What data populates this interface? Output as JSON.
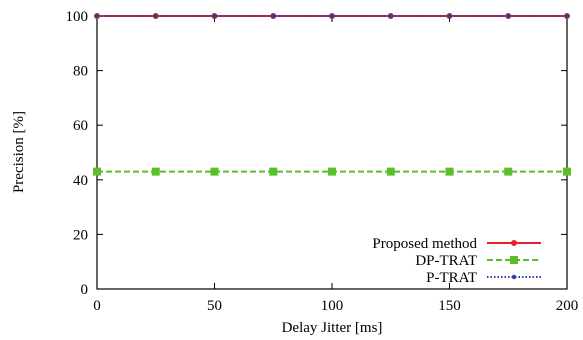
{
  "chart_data": {
    "type": "line",
    "title": "",
    "xlabel": "Delay Jitter [ms]",
    "ylabel": "Precision [%]",
    "xlim": [
      0,
      200
    ],
    "ylim": [
      0,
      100
    ],
    "xticks": [
      0,
      50,
      100,
      150,
      200
    ],
    "yticks": [
      0,
      20,
      40,
      60,
      80,
      100
    ],
    "grid": false,
    "legend_position": "bottom-right",
    "x": [
      0,
      25,
      50,
      75,
      100,
      125,
      150,
      175,
      200
    ],
    "series": [
      {
        "name": "Proposed method",
        "color": "#e8202a",
        "line_style": "solid",
        "marker": "circle",
        "values": [
          100,
          100,
          100,
          100,
          100,
          100,
          100,
          100,
          100
        ]
      },
      {
        "name": "DP-TRAT",
        "color": "#5cbf2a",
        "line_style": "dashed",
        "marker": "square",
        "values": [
          43,
          43,
          43,
          43,
          43,
          43,
          43,
          43,
          43
        ]
      },
      {
        "name": "P-TRAT",
        "color": "#2a3f9e",
        "line_style": "dotted",
        "marker": "dot",
        "values": [
          100,
          100,
          100,
          100,
          100,
          100,
          100,
          100,
          100
        ]
      }
    ]
  }
}
